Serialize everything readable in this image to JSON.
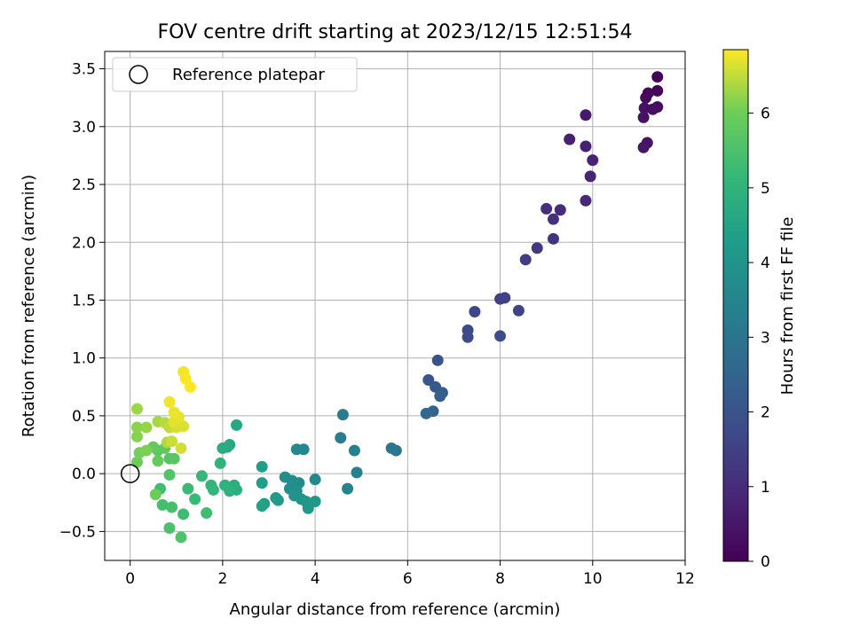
{
  "chart_data": {
    "type": "scatter",
    "title": "FOV centre drift starting at 2023/12/15 12:51:54",
    "xlabel": "Angular distance from reference (arcmin)",
    "ylabel": "Rotation from reference (arcmin)",
    "xlim": [
      -0.55,
      12
    ],
    "ylim": [
      -0.75,
      3.65
    ],
    "xticks": [
      0,
      2,
      4,
      6,
      8,
      10,
      12
    ],
    "xtick_labels": [
      "0",
      "2",
      "4",
      "6",
      "8",
      "10",
      "12"
    ],
    "yticks": [
      -0.5,
      0.0,
      0.5,
      1.0,
      1.5,
      2.0,
      2.5,
      3.0,
      3.5
    ],
    "ytick_labels": [
      "−0.5",
      "0.0",
      "0.5",
      "1.0",
      "1.5",
      "2.0",
      "2.5",
      "3.0",
      "3.5"
    ],
    "grid": true,
    "legend": {
      "location": "upper-left",
      "entries": [
        "Reference platepar"
      ]
    },
    "reference_point": {
      "x": 0,
      "y": 0,
      "label": "Reference platepar"
    },
    "colorbar": {
      "label": "Hours from first FF file",
      "colormap": "viridis",
      "range": [
        0,
        6.85
      ],
      "ticks": [
        0,
        1,
        2,
        3,
        4,
        5,
        6
      ],
      "tick_labels": [
        "0",
        "1",
        "2",
        "3",
        "4",
        "5",
        "6"
      ]
    },
    "series": [
      {
        "name": "FOV centre drift",
        "points": [
          [
            11.4,
            3.43,
            0.05
          ],
          [
            11.4,
            3.31,
            0.1
          ],
          [
            11.2,
            3.29,
            0.15
          ],
          [
            11.4,
            3.17,
            0.2
          ],
          [
            11.15,
            3.25,
            0.25
          ],
          [
            11.3,
            3.15,
            0.3
          ],
          [
            11.12,
            3.16,
            0.35
          ],
          [
            11.1,
            3.08,
            0.4
          ],
          [
            11.18,
            2.86,
            0.45
          ],
          [
            11.1,
            2.82,
            0.5
          ],
          [
            9.85,
            3.1,
            0.6
          ],
          [
            9.5,
            2.89,
            0.7
          ],
          [
            9.85,
            2.83,
            0.75
          ],
          [
            10,
            2.71,
            0.8
          ],
          [
            9.95,
            2.57,
            0.85
          ],
          [
            9.85,
            2.36,
            0.9
          ],
          [
            9.3,
            2.28,
            1.0
          ],
          [
            9,
            2.29,
            1.05
          ],
          [
            9.15,
            2.2,
            1.1
          ],
          [
            9.15,
            2.03,
            1.2
          ],
          [
            8.8,
            1.95,
            1.3
          ],
          [
            8.55,
            1.85,
            1.4
          ],
          [
            8.1,
            1.52,
            1.5
          ],
          [
            8,
            1.51,
            1.55
          ],
          [
            8.4,
            1.41,
            1.6
          ],
          [
            7.45,
            1.4,
            1.7
          ],
          [
            7.3,
            1.24,
            1.75
          ],
          [
            7.3,
            1.18,
            1.8
          ],
          [
            8,
            1.19,
            1.85
          ],
          [
            6.65,
            0.98,
            2.0
          ],
          [
            6.45,
            0.81,
            2.1
          ],
          [
            6.6,
            0.75,
            2.2
          ],
          [
            6.75,
            0.7,
            2.3
          ],
          [
            6.7,
            0.67,
            2.35
          ],
          [
            6.55,
            0.54,
            2.5
          ],
          [
            6.4,
            0.52,
            2.6
          ],
          [
            5.75,
            0.2,
            3.0
          ],
          [
            5.65,
            0.22,
            3.1
          ],
          [
            4.6,
            0.51,
            3.2
          ],
          [
            4.55,
            0.31,
            3.3
          ],
          [
            4.85,
            0.2,
            3.35
          ],
          [
            4.9,
            0.01,
            3.4
          ],
          [
            4.7,
            -0.13,
            3.45
          ],
          [
            3.75,
            0.21,
            3.55
          ],
          [
            3.6,
            0.21,
            3.6
          ],
          [
            4,
            -0.05,
            3.65
          ],
          [
            3.65,
            -0.08,
            3.7
          ],
          [
            3.5,
            -0.06,
            3.75
          ],
          [
            3.35,
            -0.03,
            3.8
          ],
          [
            3.45,
            -0.13,
            3.85
          ],
          [
            3.6,
            -0.15,
            3.9
          ],
          [
            3.55,
            -0.19,
            3.95
          ],
          [
            3.7,
            -0.22,
            4.0
          ],
          [
            3.8,
            -0.24,
            4.05
          ],
          [
            3.85,
            -0.3,
            4.1
          ],
          [
            4,
            -0.24,
            4.15
          ],
          [
            3.15,
            -0.21,
            4.2
          ],
          [
            3.2,
            -0.23,
            4.25
          ],
          [
            2.85,
            0.06,
            4.3
          ],
          [
            2.85,
            -0.08,
            4.35
          ],
          [
            2.9,
            -0.26,
            4.4
          ],
          [
            2.85,
            -0.28,
            4.45
          ],
          [
            2.3,
            0.42,
            4.6
          ],
          [
            2.15,
            0.25,
            4.65
          ],
          [
            2.1,
            0.23,
            4.7
          ],
          [
            2,
            0.22,
            4.75
          ],
          [
            2.25,
            -0.1,
            4.8
          ],
          [
            2.3,
            -0.14,
            4.85
          ],
          [
            2.15,
            -0.15,
            4.9
          ],
          [
            2.05,
            -0.1,
            4.95
          ],
          [
            1.95,
            0.09,
            5.0
          ],
          [
            1.75,
            -0.1,
            5.05
          ],
          [
            1.8,
            -0.14,
            5.1
          ],
          [
            1.55,
            -0.02,
            5.15
          ],
          [
            1.4,
            -0.22,
            5.2
          ],
          [
            1.25,
            -0.13,
            5.25
          ],
          [
            1.15,
            -0.35,
            5.3
          ],
          [
            1.65,
            -0.34,
            5.3
          ],
          [
            0.65,
            -0.13,
            5.35
          ],
          [
            0.7,
            -0.27,
            5.4
          ],
          [
            0.9,
            -0.29,
            5.45
          ],
          [
            0.85,
            -0.47,
            5.5
          ],
          [
            1.1,
            -0.55,
            5.55
          ],
          [
            0.85,
            -0.01,
            5.6
          ],
          [
            0.85,
            0.13,
            5.65
          ],
          [
            0.95,
            0.13,
            5.7
          ],
          [
            0.6,
            0.2,
            5.75
          ],
          [
            0.75,
            0.22,
            5.8
          ],
          [
            0.5,
            0.23,
            5.85
          ],
          [
            0.6,
            0.11,
            5.9
          ],
          [
            0.55,
            -0.18,
            5.95
          ],
          [
            0.15,
            0.1,
            6.0
          ],
          [
            0.2,
            0.18,
            6.05
          ],
          [
            0.35,
            0.2,
            6.1
          ],
          [
            0.15,
            0.32,
            6.15
          ],
          [
            0.15,
            0.4,
            6.2
          ],
          [
            0.35,
            0.4,
            6.25
          ],
          [
            0.15,
            0.56,
            6.3
          ],
          [
            0.6,
            0.45,
            6.35
          ],
          [
            0.8,
            0.27,
            6.4
          ],
          [
            0.75,
            0.44,
            6.45
          ],
          [
            0.85,
            0.4,
            6.5
          ],
          [
            0.9,
            0.28,
            6.55
          ],
          [
            1.1,
            0.22,
            6.6
          ],
          [
            1.0,
            0.4,
            6.62
          ],
          [
            1.15,
            0.41,
            6.65
          ],
          [
            0.95,
            0.45,
            6.7
          ],
          [
            1.05,
            0.49,
            6.72
          ],
          [
            0.95,
            0.53,
            6.75
          ],
          [
            0.85,
            0.62,
            6.78
          ],
          [
            1.15,
            0.88,
            6.8
          ],
          [
            1.2,
            0.82,
            6.82
          ],
          [
            1.3,
            0.75,
            6.85
          ]
        ]
      }
    ]
  }
}
